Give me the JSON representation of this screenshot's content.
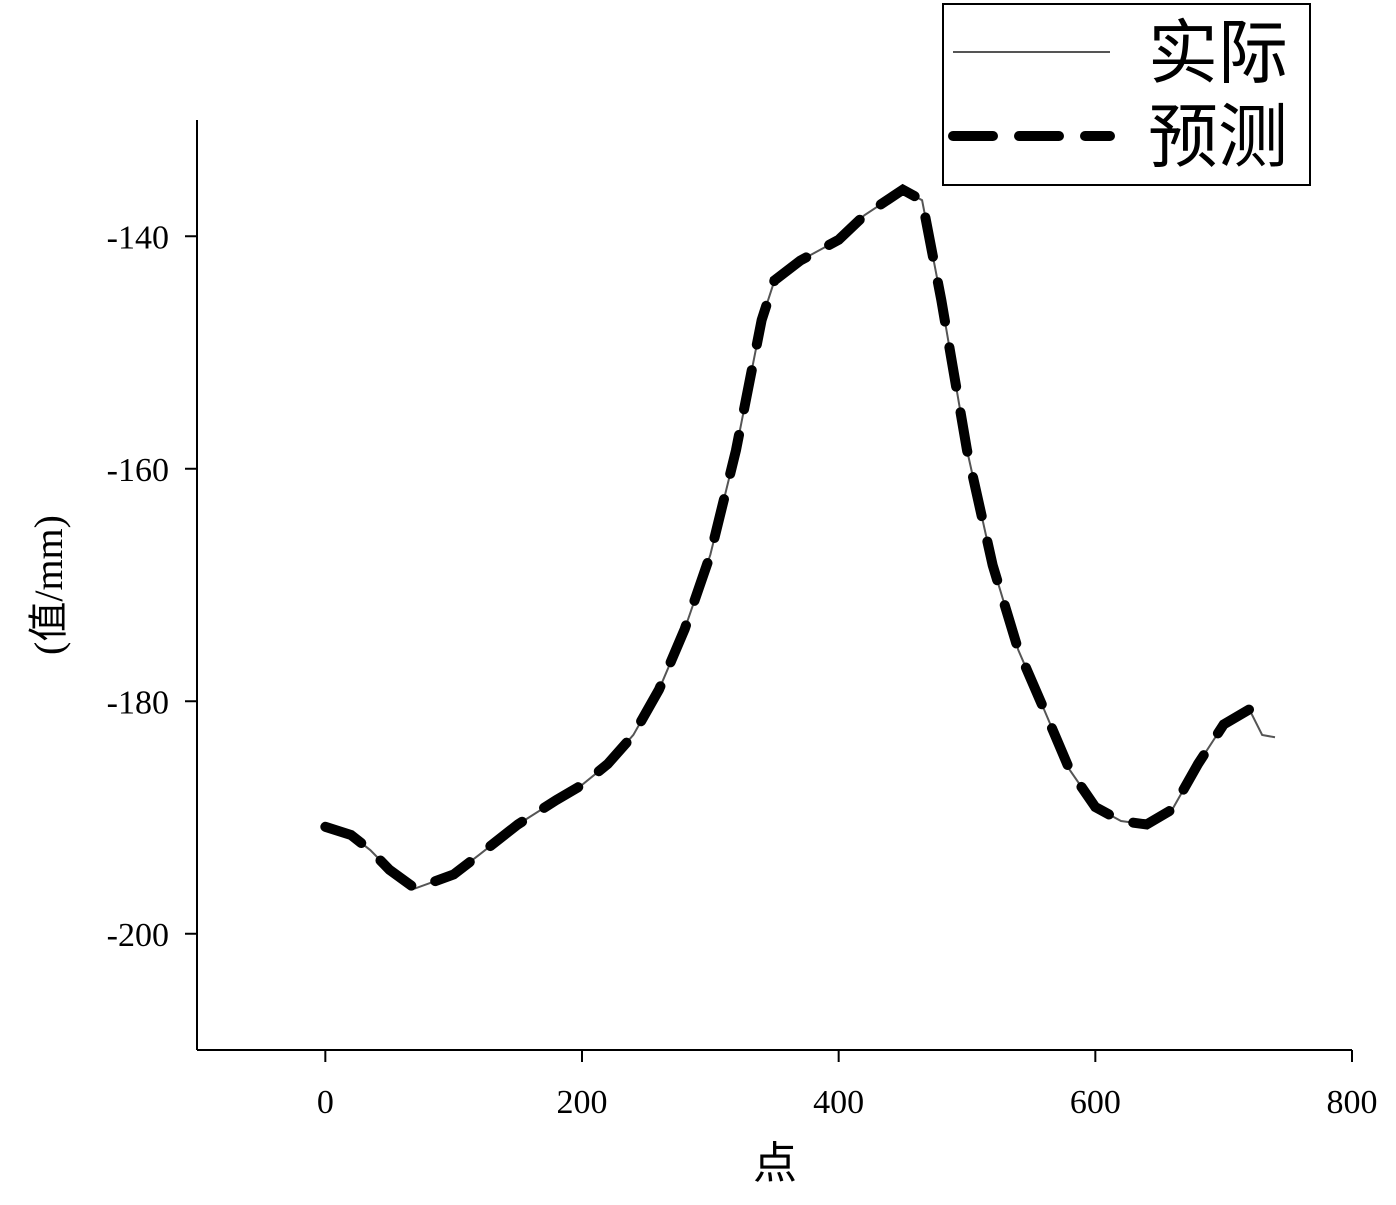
{
  "chart_data": {
    "type": "line",
    "x_label": "点",
    "y_label": "(值/mm)",
    "x": [
      0,
      20,
      35,
      50,
      70,
      100,
      120,
      150,
      180,
      200,
      220,
      240,
      260,
      280,
      300,
      320,
      340,
      350,
      370,
      400,
      420,
      450,
      465,
      480,
      500,
      520,
      540,
      560,
      580,
      600,
      620,
      640,
      660,
      680,
      700,
      720,
      730,
      740
    ],
    "series": [
      {
        "name": "实际",
        "color": "#555555",
        "dashed": false,
        "values": [
          -190.8,
          -191.5,
          -192.8,
          -194.5,
          -196.1,
          -194.9,
          -193.2,
          -190.6,
          -188.5,
          -187.2,
          -185.4,
          -182.9,
          -179.0,
          -173.8,
          -167.4,
          -158.4,
          -147.2,
          -143.8,
          -142.1,
          -140.3,
          -138.2,
          -136.0,
          -136.9,
          -145.5,
          -158.4,
          -168.3,
          -175.6,
          -180.7,
          -185.9,
          -189.1,
          -190.3,
          -190.6,
          -189.3,
          -185.4,
          -182.0,
          -180.7,
          -182.9,
          -183.1
        ]
      },
      {
        "name": "预测",
        "color": "#000000",
        "dashed": true,
        "values": [
          -190.8,
          -191.5,
          -192.8,
          -194.5,
          -196.1,
          -194.9,
          -193.2,
          -190.6,
          -188.5,
          -187.2,
          -185.4,
          -182.9,
          -179.0,
          -173.8,
          -167.4,
          -158.4,
          -147.2,
          -143.8,
          -142.1,
          -140.3,
          -138.2,
          -136.0,
          -136.9,
          -145.5,
          -158.4,
          -168.3,
          -175.6,
          -180.7,
          -185.9,
          -189.1,
          -190.3,
          -190.6,
          -189.3,
          -185.4,
          -182.0,
          -180.7,
          null,
          null
        ]
      }
    ],
    "xlim": [
      -100,
      800
    ],
    "xticks": [
      0,
      200,
      400,
      600,
      800
    ],
    "ylim": [
      -210,
      -130
    ],
    "yticks": [
      -140,
      -160,
      -180,
      -200
    ],
    "legend": "top-right"
  }
}
